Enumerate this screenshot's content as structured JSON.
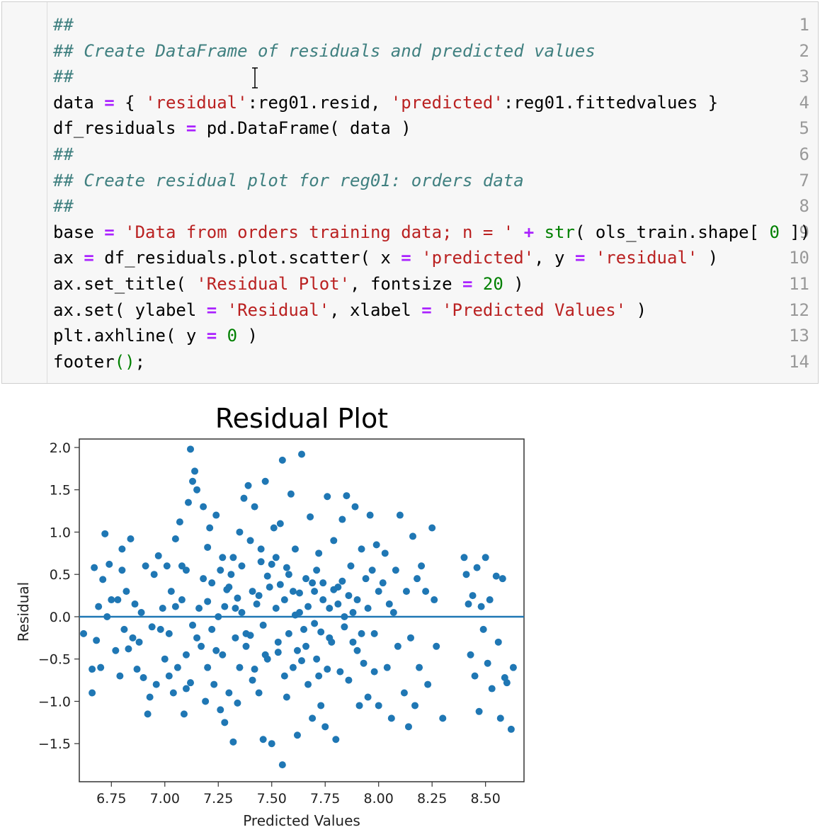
{
  "code_cell": {
    "lines": [
      {
        "n": "1",
        "tokens": [
          {
            "t": "##",
            "c": "comment"
          }
        ]
      },
      {
        "n": "2",
        "tokens": [
          {
            "t": "## Create DataFrame of residuals and predicted values",
            "c": "comment"
          }
        ]
      },
      {
        "n": "3",
        "tokens": [
          {
            "t": "##",
            "c": "comment"
          }
        ]
      },
      {
        "n": "4",
        "tokens": [
          {
            "t": "data ",
            "c": "name"
          },
          {
            "t": "=",
            "c": "op"
          },
          {
            "t": " { ",
            "c": "name"
          },
          {
            "t": "'residual'",
            "c": "str"
          },
          {
            "t": ":reg01.resid, ",
            "c": "name"
          },
          {
            "t": "'predicted'",
            "c": "str"
          },
          {
            "t": ":reg01.fittedvalues }",
            "c": "name"
          }
        ]
      },
      {
        "n": "5",
        "tokens": [
          {
            "t": "df_residuals ",
            "c": "name"
          },
          {
            "t": "=",
            "c": "op"
          },
          {
            "t": " pd.DataFrame( data )",
            "c": "name"
          }
        ]
      },
      {
        "n": "6",
        "tokens": [
          {
            "t": "##",
            "c": "comment"
          }
        ]
      },
      {
        "n": "7",
        "tokens": [
          {
            "t": "## Create residual plot for reg01: orders data",
            "c": "comment"
          }
        ]
      },
      {
        "n": "8",
        "tokens": [
          {
            "t": "##",
            "c": "comment"
          }
        ]
      },
      {
        "n": "9",
        "tokens": [
          {
            "t": "base ",
            "c": "name"
          },
          {
            "t": "=",
            "c": "op"
          },
          {
            "t": " ",
            "c": "name"
          },
          {
            "t": "'Data from orders training data; n = '",
            "c": "str"
          },
          {
            "t": " ",
            "c": "name"
          },
          {
            "t": "+",
            "c": "op"
          },
          {
            "t": " ",
            "c": "name"
          },
          {
            "t": "str",
            "c": "builtin"
          },
          {
            "t": "( ols_train.shape[ ",
            "c": "name"
          },
          {
            "t": "0",
            "c": "num"
          },
          {
            "t": " ])",
            "c": "name"
          }
        ]
      },
      {
        "n": "10",
        "tokens": [
          {
            "t": "ax ",
            "c": "name"
          },
          {
            "t": "=",
            "c": "op"
          },
          {
            "t": " df_residuals.plot.scatter( x ",
            "c": "name"
          },
          {
            "t": "=",
            "c": "op"
          },
          {
            "t": " ",
            "c": "name"
          },
          {
            "t": "'predicted'",
            "c": "str"
          },
          {
            "t": ", y ",
            "c": "name"
          },
          {
            "t": "=",
            "c": "op"
          },
          {
            "t": " ",
            "c": "name"
          },
          {
            "t": "'residual'",
            "c": "str"
          },
          {
            "t": " )",
            "c": "name"
          }
        ]
      },
      {
        "n": "11",
        "tokens": [
          {
            "t": "ax.set_title( ",
            "c": "name"
          },
          {
            "t": "'Residual Plot'",
            "c": "str"
          },
          {
            "t": ", fontsize ",
            "c": "name"
          },
          {
            "t": "=",
            "c": "op"
          },
          {
            "t": " ",
            "c": "name"
          },
          {
            "t": "20",
            "c": "num"
          },
          {
            "t": " )",
            "c": "name"
          }
        ]
      },
      {
        "n": "12",
        "tokens": [
          {
            "t": "ax.set( ylabel ",
            "c": "name"
          },
          {
            "t": "=",
            "c": "op"
          },
          {
            "t": " ",
            "c": "name"
          },
          {
            "t": "'Residual'",
            "c": "str"
          },
          {
            "t": ", xlabel ",
            "c": "name"
          },
          {
            "t": "=",
            "c": "op"
          },
          {
            "t": " ",
            "c": "name"
          },
          {
            "t": "'Predicted Values'",
            "c": "str"
          },
          {
            "t": " )",
            "c": "name"
          }
        ]
      },
      {
        "n": "13",
        "tokens": [
          {
            "t": "plt.axhline( y ",
            "c": "name"
          },
          {
            "t": "=",
            "c": "op"
          },
          {
            "t": " ",
            "c": "name"
          },
          {
            "t": "0",
            "c": "num"
          },
          {
            "t": " )",
            "c": "name"
          }
        ]
      },
      {
        "n": "14",
        "tokens": [
          {
            "t": "footer",
            "c": "name"
          },
          {
            "t": "()",
            "c": "paren"
          },
          {
            "t": ";",
            "c": "name"
          }
        ]
      }
    ]
  },
  "chart_data": {
    "type": "scatter",
    "title": "Residual Plot",
    "xlabel": "Predicted Values",
    "ylabel": "Residual",
    "xlim": [
      6.6,
      8.68
    ],
    "ylim": [
      -1.95,
      2.1
    ],
    "xticks": [
      "6.75",
      "7.00",
      "7.25",
      "7.50",
      "7.75",
      "8.00",
      "8.25",
      "8.50"
    ],
    "xtick_values": [
      6.75,
      7.0,
      7.25,
      7.5,
      7.75,
      8.0,
      8.25,
      8.5
    ],
    "yticks": [
      "2.0",
      "1.5",
      "1.0",
      "0.5",
      "0.0",
      "−0.5",
      "−1.0",
      "−1.5"
    ],
    "ytick_values": [
      2.0,
      1.5,
      1.0,
      0.5,
      0.0,
      -0.5,
      -1.0,
      -1.5
    ],
    "grid": false,
    "marker_color": "#1f77b4",
    "hline_y": 0,
    "hline_color": "#1f77b4",
    "points": [
      [
        6.62,
        -0.2
      ],
      [
        6.66,
        -0.62
      ],
      [
        6.66,
        -0.9
      ],
      [
        6.67,
        0.58
      ],
      [
        6.68,
        -0.28
      ],
      [
        6.69,
        0.12
      ],
      [
        6.7,
        -0.6
      ],
      [
        6.71,
        0.44
      ],
      [
        6.72,
        0.98
      ],
      [
        6.73,
        0.0
      ],
      [
        6.74,
        0.62
      ],
      [
        6.75,
        0.2
      ],
      [
        6.77,
        -0.4
      ],
      [
        6.78,
        0.2
      ],
      [
        6.79,
        -0.7
      ],
      [
        6.8,
        0.55
      ],
      [
        6.8,
        0.8
      ],
      [
        6.81,
        -0.15
      ],
      [
        6.82,
        0.3
      ],
      [
        6.83,
        -0.38
      ],
      [
        6.84,
        0.92
      ],
      [
        6.85,
        -0.25
      ],
      [
        6.86,
        0.15
      ],
      [
        6.87,
        -0.62
      ],
      [
        6.88,
        -0.3
      ],
      [
        6.89,
        0.05
      ],
      [
        6.9,
        -0.72
      ],
      [
        6.91,
        0.6
      ],
      [
        6.92,
        -1.15
      ],
      [
        6.93,
        -0.95
      ],
      [
        6.94,
        -0.12
      ],
      [
        6.95,
        0.5
      ],
      [
        6.96,
        -0.8
      ],
      [
        6.97,
        0.72
      ],
      [
        6.98,
        -0.15
      ],
      [
        6.99,
        0.1
      ],
      [
        7.0,
        -0.5
      ],
      [
        7.01,
        0.6
      ],
      [
        7.02,
        -0.2
      ],
      [
        7.02,
        -0.7
      ],
      [
        7.03,
        0.3
      ],
      [
        7.04,
        -0.9
      ],
      [
        7.05,
        0.92
      ],
      [
        7.06,
        -0.6
      ],
      [
        7.07,
        1.12
      ],
      [
        7.08,
        0.2
      ],
      [
        7.09,
        -1.15
      ],
      [
        7.1,
        -0.85
      ],
      [
        7.1,
        0.55
      ],
      [
        7.11,
        1.35
      ],
      [
        7.12,
        1.98
      ],
      [
        7.12,
        -0.78
      ],
      [
        7.13,
        1.6
      ],
      [
        7.14,
        1.72
      ],
      [
        7.15,
        1.5
      ],
      [
        7.16,
        0.1
      ],
      [
        7.17,
        -0.35
      ],
      [
        7.18,
        1.3
      ],
      [
        7.19,
        -1.0
      ],
      [
        7.2,
        0.82
      ],
      [
        7.2,
        -0.6
      ],
      [
        7.21,
        1.05
      ],
      [
        7.22,
        0.4
      ],
      [
        7.23,
        -0.8
      ],
      [
        7.24,
        1.2
      ],
      [
        7.25,
        0.0
      ],
      [
        7.26,
        -1.1
      ],
      [
        7.27,
        0.7
      ],
      [
        7.27,
        -0.45
      ],
      [
        7.28,
        -1.25
      ],
      [
        7.29,
        0.32
      ],
      [
        7.3,
        -0.9
      ],
      [
        7.31,
        0.5
      ],
      [
        7.32,
        -1.48
      ],
      [
        7.33,
        0.1
      ],
      [
        7.34,
        -1.02
      ],
      [
        7.35,
        1.0
      ],
      [
        7.36,
        0.6
      ],
      [
        7.37,
        1.4
      ],
      [
        7.38,
        -0.2
      ],
      [
        7.39,
        1.55
      ],
      [
        7.4,
        0.9
      ],
      [
        7.41,
        -0.75
      ],
      [
        7.42,
        1.3
      ],
      [
        7.43,
        0.15
      ],
      [
        7.44,
        -0.9
      ],
      [
        7.45,
        0.8
      ],
      [
        7.46,
        -1.45
      ],
      [
        7.47,
        1.6
      ],
      [
        7.48,
        -0.5
      ],
      [
        7.49,
        0.35
      ],
      [
        7.5,
        -1.5
      ],
      [
        7.51,
        1.05
      ],
      [
        7.52,
        0.7
      ],
      [
        7.53,
        -0.3
      ],
      [
        7.54,
        1.1
      ],
      [
        7.55,
        -1.75
      ],
      [
        7.55,
        1.85
      ],
      [
        7.56,
        0.2
      ],
      [
        7.57,
        -0.95
      ],
      [
        7.58,
        0.5
      ],
      [
        7.59,
        1.45
      ],
      [
        7.6,
        -0.6
      ],
      [
        7.61,
        0.8
      ],
      [
        7.62,
        -1.4
      ],
      [
        7.63,
        0.05
      ],
      [
        7.64,
        1.92
      ],
      [
        7.65,
        -0.15
      ],
      [
        7.66,
        0.45
      ],
      [
        7.67,
        -0.8
      ],
      [
        7.68,
        1.18
      ],
      [
        7.69,
        -1.2
      ],
      [
        7.7,
        0.3
      ],
      [
        7.71,
        -0.5
      ],
      [
        7.72,
        0.75
      ],
      [
        7.73,
        -1.05
      ],
      [
        7.74,
        0.4
      ],
      [
        7.75,
        -1.3
      ],
      [
        7.76,
        1.42
      ],
      [
        7.77,
        0.1
      ],
      [
        7.78,
        -0.3
      ],
      [
        7.79,
        0.9
      ],
      [
        7.8,
        -1.45
      ],
      [
        7.81,
        0.35
      ],
      [
        7.82,
        -0.65
      ],
      [
        7.83,
        1.15
      ],
      [
        7.84,
        0.0
      ],
      [
        7.85,
        1.43
      ],
      [
        7.86,
        -0.75
      ],
      [
        7.87,
        0.6
      ],
      [
        7.88,
        -0.3
      ],
      [
        7.89,
        1.3
      ],
      [
        7.9,
        0.2
      ],
      [
        7.91,
        -1.05
      ],
      [
        7.92,
        0.8
      ],
      [
        7.93,
        -0.55
      ],
      [
        7.94,
        0.45
      ],
      [
        7.95,
        -0.95
      ],
      [
        7.96,
        1.2
      ],
      [
        7.97,
        0.55
      ],
      [
        7.98,
        -0.2
      ],
      [
        7.99,
        0.85
      ],
      [
        8.0,
        -1.05
      ],
      [
        8.02,
        0.4
      ],
      [
        8.03,
        0.75
      ],
      [
        8.04,
        -0.6
      ],
      [
        8.05,
        0.15
      ],
      [
        8.06,
        -1.2
      ],
      [
        8.08,
        0.55
      ],
      [
        8.09,
        -0.35
      ],
      [
        8.1,
        1.2
      ],
      [
        8.12,
        -0.9
      ],
      [
        8.13,
        0.3
      ],
      [
        8.14,
        -1.3
      ],
      [
        8.15,
        -0.25
      ],
      [
        8.16,
        0.95
      ],
      [
        8.17,
        -1.05
      ],
      [
        8.18,
        0.45
      ],
      [
        8.19,
        -0.6
      ],
      [
        8.2,
        0.6
      ],
      [
        8.22,
        0.3
      ],
      [
        8.23,
        -0.8
      ],
      [
        8.25,
        1.05
      ],
      [
        8.26,
        0.2
      ],
      [
        8.27,
        -0.35
      ],
      [
        8.3,
        -1.2
      ],
      [
        8.4,
        0.7
      ],
      [
        8.41,
        0.5
      ],
      [
        8.42,
        0.15
      ],
      [
        8.43,
        -0.45
      ],
      [
        8.44,
        0.25
      ],
      [
        8.45,
        -0.7
      ],
      [
        8.46,
        0.58
      ],
      [
        8.47,
        -1.12
      ],
      [
        8.48,
        0.12
      ],
      [
        8.49,
        -0.15
      ],
      [
        8.5,
        0.7
      ],
      [
        8.51,
        -0.55
      ],
      [
        8.52,
        0.2
      ],
      [
        8.53,
        -0.85
      ],
      [
        8.55,
        0.48
      ],
      [
        8.56,
        -0.3
      ],
      [
        8.57,
        -1.2
      ],
      [
        8.58,
        0.45
      ],
      [
        8.59,
        -0.72
      ],
      [
        8.6,
        -0.78
      ],
      [
        8.62,
        -1.33
      ],
      [
        8.63,
        -0.6
      ],
      [
        7.36,
        0.05
      ],
      [
        7.44,
        0.25
      ],
      [
        7.52,
        0.1
      ],
      [
        7.58,
        -0.2
      ],
      [
        7.63,
        0.28
      ],
      [
        7.67,
        0.12
      ],
      [
        7.7,
        -0.08
      ],
      [
        7.74,
        0.2
      ],
      [
        7.77,
        -0.25
      ],
      [
        7.81,
        0.15
      ],
      [
        7.38,
        -0.35
      ],
      [
        7.46,
        -0.1
      ],
      [
        7.54,
        0.38
      ],
      [
        7.61,
        0.02
      ],
      [
        7.66,
        -0.35
      ],
      [
        7.69,
        0.4
      ],
      [
        7.73,
        -0.18
      ],
      [
        7.79,
        0.32
      ],
      [
        7.84,
        -0.12
      ],
      [
        7.9,
        -0.4
      ],
      [
        7.28,
        0.12
      ],
      [
        7.33,
        -0.25
      ],
      [
        7.41,
        0.3
      ],
      [
        7.47,
        -0.45
      ],
      [
        7.57,
        0.58
      ],
      [
        7.64,
        -0.52
      ],
      [
        7.71,
        0.55
      ],
      [
        7.76,
        -0.62
      ],
      [
        7.83,
        0.42
      ],
      [
        7.88,
        0.05
      ],
      [
        7.15,
        -0.25
      ],
      [
        7.2,
        0.18
      ],
      [
        7.24,
        -0.4
      ],
      [
        7.3,
        0.35
      ],
      [
        7.35,
        -0.6
      ],
      [
        7.4,
        -0.22
      ],
      [
        7.5,
        0.62
      ],
      [
        7.56,
        -0.7
      ],
      [
        7.6,
        0.3
      ],
      [
        7.95,
        0.1
      ],
      [
        7.05,
        0.12
      ],
      [
        7.1,
        -0.45
      ],
      [
        7.18,
        0.45
      ],
      [
        7.22,
        -0.15
      ],
      [
        7.32,
        0.7
      ],
      [
        7.42,
        -0.62
      ],
      [
        7.48,
        0.48
      ],
      [
        7.53,
        -0.42
      ],
      [
        7.92,
        -0.2
      ],
      [
        8.0,
        0.3
      ],
      [
        7.08,
        0.6
      ],
      [
        7.13,
        -0.1
      ],
      [
        7.26,
        0.55
      ],
      [
        7.34,
        0.22
      ],
      [
        7.45,
        0.65
      ],
      [
        7.62,
        -0.4
      ],
      [
        7.72,
        -0.7
      ],
      [
        7.86,
        0.25
      ],
      [
        7.98,
        -0.65
      ],
      [
        8.07,
        0.05
      ]
    ]
  }
}
